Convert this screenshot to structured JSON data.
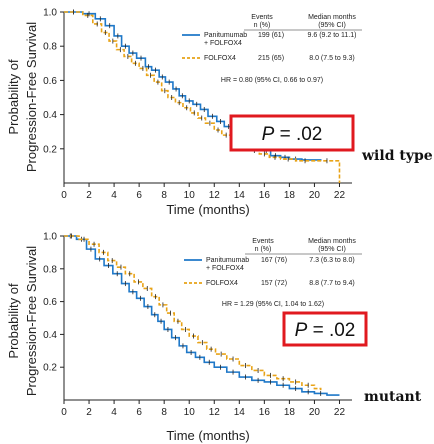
{
  "chart_data": [
    {
      "type": "line",
      "xlabel": "Time (months)",
      "ylabel": [
        "Probability of",
        "Progression-Free Survival"
      ],
      "xlim": [
        0,
        23
      ],
      "ylim": [
        0,
        1.0
      ],
      "xticks": [
        "0",
        "2",
        "4",
        "6",
        "8",
        "10",
        "12",
        "14",
        "16",
        "18",
        "20",
        "22"
      ],
      "yticks": [
        "0.2",
        "0.4",
        "0.6",
        "0.8",
        "1.0"
      ],
      "side_label": "wild type",
      "pvalue": {
        "label": "P",
        "text": " = .02"
      },
      "legend": {
        "header_events": [
          "Events",
          "n (%)"
        ],
        "header_median": [
          "Median months",
          "(95% CI)"
        ],
        "hr_text": "HR = 0.80 (95% CI, 0.66 to 0.97)"
      },
      "series": [
        {
          "name": [
            "Panitumumab",
            "+ FOLFOX4"
          ],
          "events": "199 (61)",
          "median": "9.6 (9.2 to 11.1)",
          "color": "#1f78c8",
          "style": "solid",
          "points": [
            [
              0,
              1.0
            ],
            [
              1.5,
              0.99
            ],
            [
              2.5,
              0.96
            ],
            [
              3.3,
              0.92
            ],
            [
              4.0,
              0.86
            ],
            [
              4.6,
              0.8
            ],
            [
              5.2,
              0.76
            ],
            [
              5.8,
              0.73
            ],
            [
              6.5,
              0.68
            ],
            [
              7.0,
              0.66
            ],
            [
              7.6,
              0.62
            ],
            [
              8.1,
              0.59
            ],
            [
              8.7,
              0.55
            ],
            [
              9.2,
              0.51
            ],
            [
              9.7,
              0.48
            ],
            [
              10.3,
              0.46
            ],
            [
              10.9,
              0.43
            ],
            [
              11.5,
              0.39
            ],
            [
              12.2,
              0.36
            ],
            [
              12.8,
              0.33
            ],
            [
              13.5,
              0.3
            ],
            [
              14.2,
              0.27
            ],
            [
              15.0,
              0.23
            ],
            [
              15.8,
              0.19
            ],
            [
              16.5,
              0.16
            ],
            [
              17.3,
              0.15
            ],
            [
              18.0,
              0.14
            ],
            [
              19.0,
              0.135
            ],
            [
              20.5,
              0.13
            ]
          ]
        },
        {
          "name": [
            "FOLFOX4"
          ],
          "events": "215 (65)",
          "median": "8.0 (7.5 to 9.3)",
          "color": "#e8a317",
          "style": "dashed",
          "points": [
            [
              0,
              1.0
            ],
            [
              1.5,
              0.98
            ],
            [
              2.3,
              0.93
            ],
            [
              3.0,
              0.88
            ],
            [
              3.6,
              0.83
            ],
            [
              4.2,
              0.78
            ],
            [
              4.8,
              0.74
            ],
            [
              5.4,
              0.7
            ],
            [
              6.0,
              0.67
            ],
            [
              6.6,
              0.63
            ],
            [
              7.2,
              0.59
            ],
            [
              7.8,
              0.54
            ],
            [
              8.3,
              0.5
            ],
            [
              8.9,
              0.47
            ],
            [
              9.5,
              0.44
            ],
            [
              10.1,
              0.41
            ],
            [
              10.7,
              0.38
            ],
            [
              11.3,
              0.35
            ],
            [
              12.0,
              0.31
            ],
            [
              12.6,
              0.28
            ],
            [
              13.3,
              0.26
            ],
            [
              14.1,
              0.22
            ],
            [
              14.8,
              0.19
            ],
            [
              15.6,
              0.17
            ],
            [
              16.4,
              0.15
            ],
            [
              17.3,
              0.14
            ],
            [
              18.5,
              0.13
            ],
            [
              20.0,
              0.13
            ],
            [
              22.0,
              0.13
            ],
            [
              22.0,
              0.0
            ]
          ]
        }
      ]
    },
    {
      "type": "line",
      "xlabel": "Time (months)",
      "ylabel": [
        "Probability of",
        "Progression-Free Survival"
      ],
      "xlim": [
        0,
        23
      ],
      "ylim": [
        0,
        1.0
      ],
      "xticks": [
        "0",
        "2",
        "4",
        "6",
        "8",
        "10",
        "12",
        "14",
        "16",
        "18",
        "20",
        "22"
      ],
      "yticks": [
        "0.2",
        "0.4",
        "0.6",
        "0.8",
        "1.0"
      ],
      "side_label": "mutant",
      "pvalue": {
        "label": "P",
        "text": " = .02"
      },
      "legend": {
        "header_events": [
          "Events",
          "n (%)"
        ],
        "header_median": [
          "Median months",
          "(95% CI)"
        ],
        "hr_text": "HR = 1.29 (95% CI, 1.04 to 1.62)"
      },
      "series": [
        {
          "name": [
            "Panitumumab",
            "+ FOLFOX4"
          ],
          "events": "167 (76)",
          "median": "7.3 (6.3 to 8.0)",
          "color": "#1f78c8",
          "style": "solid",
          "points": [
            [
              0,
              1.0
            ],
            [
              1.0,
              0.98
            ],
            [
              1.8,
              0.92
            ],
            [
              2.5,
              0.86
            ],
            [
              3.2,
              0.82
            ],
            [
              3.9,
              0.77
            ],
            [
              4.6,
              0.71
            ],
            [
              5.2,
              0.66
            ],
            [
              5.8,
              0.62
            ],
            [
              6.4,
              0.57
            ],
            [
              7.0,
              0.52
            ],
            [
              7.5,
              0.48
            ],
            [
              8.0,
              0.43
            ],
            [
              8.6,
              0.38
            ],
            [
              9.2,
              0.33
            ],
            [
              9.8,
              0.29
            ],
            [
              10.5,
              0.26
            ],
            [
              11.2,
              0.23
            ],
            [
              12.0,
              0.2
            ],
            [
              13.0,
              0.17
            ],
            [
              14.0,
              0.14
            ],
            [
              15.0,
              0.12
            ],
            [
              16.0,
              0.11
            ],
            [
              17.0,
              0.09
            ],
            [
              18.0,
              0.07
            ],
            [
              19.0,
              0.05
            ],
            [
              20.0,
              0.04
            ],
            [
              21.0,
              0.03
            ],
            [
              22.0,
              0.03
            ]
          ]
        },
        {
          "name": [
            "FOLFOX4"
          ],
          "events": "157 (72)",
          "median": "8.8 (7.7 to 9.4)",
          "color": "#e8a317",
          "style": "dashed",
          "points": [
            [
              0,
              1.0
            ],
            [
              1.2,
              0.98
            ],
            [
              2.0,
              0.95
            ],
            [
              2.8,
              0.9
            ],
            [
              3.5,
              0.85
            ],
            [
              4.2,
              0.81
            ],
            [
              4.9,
              0.77
            ],
            [
              5.6,
              0.72
            ],
            [
              6.3,
              0.68
            ],
            [
              7.0,
              0.63
            ],
            [
              7.6,
              0.58
            ],
            [
              8.2,
              0.53
            ],
            [
              8.8,
              0.48
            ],
            [
              9.4,
              0.43
            ],
            [
              10.0,
              0.39
            ],
            [
              10.7,
              0.35
            ],
            [
              11.4,
              0.31
            ],
            [
              12.1,
              0.28
            ],
            [
              13.0,
              0.25
            ],
            [
              14.0,
              0.21
            ],
            [
              15.0,
              0.18
            ],
            [
              16.0,
              0.15
            ],
            [
              17.0,
              0.13
            ],
            [
              18.0,
              0.11
            ],
            [
              19.0,
              0.09
            ],
            [
              20.0,
              0.07
            ],
            [
              20.5,
              0.06
            ]
          ]
        }
      ]
    }
  ]
}
